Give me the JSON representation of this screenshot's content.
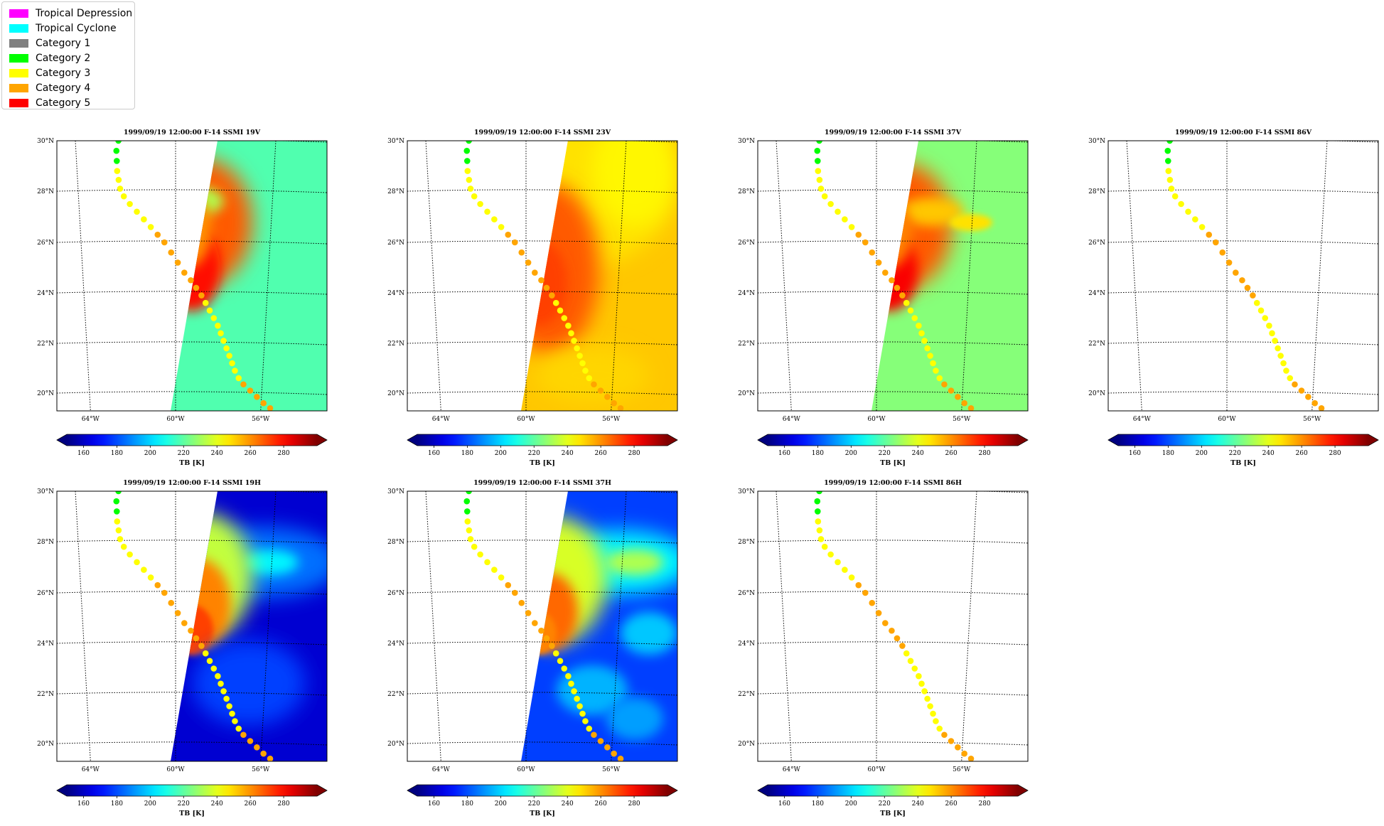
{
  "legend": [
    {
      "label": "Tropical Depression",
      "color": "#ff00ff"
    },
    {
      "label": "Tropical Cyclone",
      "color": "#00ffff"
    },
    {
      "label": "Category 1",
      "color": "#808080"
    },
    {
      "label": "Category 2",
      "color": "#00ff00"
    },
    {
      "label": "Category 3",
      "color": "#ffff00"
    },
    {
      "label": "Category 4",
      "color": "#ffa500"
    },
    {
      "label": "Category 5",
      "color": "#ff0000"
    }
  ],
  "panels": [
    {
      "title": "1999/09/19 12:00:00  F-14 SSMI 19V",
      "has_data": true,
      "mode": "v19"
    },
    {
      "title": "1999/09/19 12:00:00  F-14 SSMI 23V",
      "has_data": true,
      "mode": "v23"
    },
    {
      "title": "1999/09/19 12:00:00  F-14 SSMI 37V",
      "has_data": true,
      "mode": "v37"
    },
    {
      "title": "1999/09/19 12:00:00  F-14 SSMI 86V",
      "has_data": false,
      "mode": "none"
    },
    {
      "title": "1999/09/19 12:00:00  F-14 SSMI 19H",
      "has_data": true,
      "mode": "h19"
    },
    {
      "title": "1999/09/19 12:00:00  F-14 SSMI 37H",
      "has_data": true,
      "mode": "h37"
    },
    {
      "title": "1999/09/19 12:00:00  F-14 SSMI 86H",
      "has_data": false,
      "mode": "none"
    }
  ],
  "map": {
    "lon_ticks": [
      "64°W",
      "60°W",
      "56°W"
    ],
    "lat_ticks": [
      "30°N",
      "28°N",
      "26°N",
      "24°N",
      "22°N",
      "20°N"
    ]
  },
  "colorbar": {
    "label": "TB [K]",
    "ticks": [
      "160",
      "180",
      "200",
      "220",
      "240",
      "260",
      "280"
    ],
    "range": [
      150,
      300
    ]
  },
  "track": [
    {
      "lat": 30.0,
      "lon": -62.4,
      "cat": "Category 2"
    },
    {
      "lat": 29.6,
      "lon": -62.5,
      "cat": "Category 2"
    },
    {
      "lat": 29.2,
      "lon": -62.5,
      "cat": "Category 2"
    },
    {
      "lat": 28.8,
      "lon": -62.5,
      "cat": "Category 3"
    },
    {
      "lat": 28.45,
      "lon": -62.45,
      "cat": "Category 3"
    },
    {
      "lat": 28.1,
      "lon": -62.4,
      "cat": "Category 3"
    },
    {
      "lat": 27.8,
      "lon": -62.25,
      "cat": "Category 3"
    },
    {
      "lat": 27.5,
      "lon": -62.0,
      "cat": "Category 3"
    },
    {
      "lat": 27.2,
      "lon": -61.7,
      "cat": "Category 3"
    },
    {
      "lat": 26.9,
      "lon": -61.4,
      "cat": "Category 3"
    },
    {
      "lat": 26.6,
      "lon": -61.1,
      "cat": "Category 3"
    },
    {
      "lat": 26.3,
      "lon": -60.8,
      "cat": "Category 4"
    },
    {
      "lat": 26.0,
      "lon": -60.5,
      "cat": "Category 4"
    },
    {
      "lat": 25.6,
      "lon": -60.2,
      "cat": "Category 4"
    },
    {
      "lat": 25.2,
      "lon": -59.9,
      "cat": "Category 4"
    },
    {
      "lat": 24.8,
      "lon": -59.6,
      "cat": "Category 4"
    },
    {
      "lat": 24.5,
      "lon": -59.3,
      "cat": "Category 4"
    },
    {
      "lat": 24.2,
      "lon": -59.05,
      "cat": "Category 4"
    },
    {
      "lat": 23.9,
      "lon": -58.8,
      "cat": "Category 4"
    },
    {
      "lat": 23.6,
      "lon": -58.6,
      "cat": "Category 3"
    },
    {
      "lat": 23.3,
      "lon": -58.4,
      "cat": "Category 3"
    },
    {
      "lat": 23.0,
      "lon": -58.2,
      "cat": "Category 3"
    },
    {
      "lat": 22.7,
      "lon": -58.0,
      "cat": "Category 3"
    },
    {
      "lat": 22.4,
      "lon": -57.85,
      "cat": "Category 3"
    },
    {
      "lat": 22.1,
      "lon": -57.7,
      "cat": "Category 3"
    },
    {
      "lat": 21.8,
      "lon": -57.55,
      "cat": "Category 3"
    },
    {
      "lat": 21.5,
      "lon": -57.4,
      "cat": "Category 3"
    },
    {
      "lat": 21.2,
      "lon": -57.25,
      "cat": "Category 3"
    },
    {
      "lat": 20.9,
      "lon": -57.1,
      "cat": "Category 3"
    },
    {
      "lat": 20.6,
      "lon": -56.9,
      "cat": "Category 3"
    },
    {
      "lat": 20.35,
      "lon": -56.65,
      "cat": "Category 4"
    },
    {
      "lat": 20.1,
      "lon": -56.3,
      "cat": "Category 4"
    },
    {
      "lat": 19.85,
      "lon": -55.95,
      "cat": "Category 4"
    },
    {
      "lat": 19.6,
      "lon": -55.6,
      "cat": "Category 4"
    },
    {
      "lat": 19.4,
      "lon": -55.25,
      "cat": "Category 4"
    }
  ]
}
